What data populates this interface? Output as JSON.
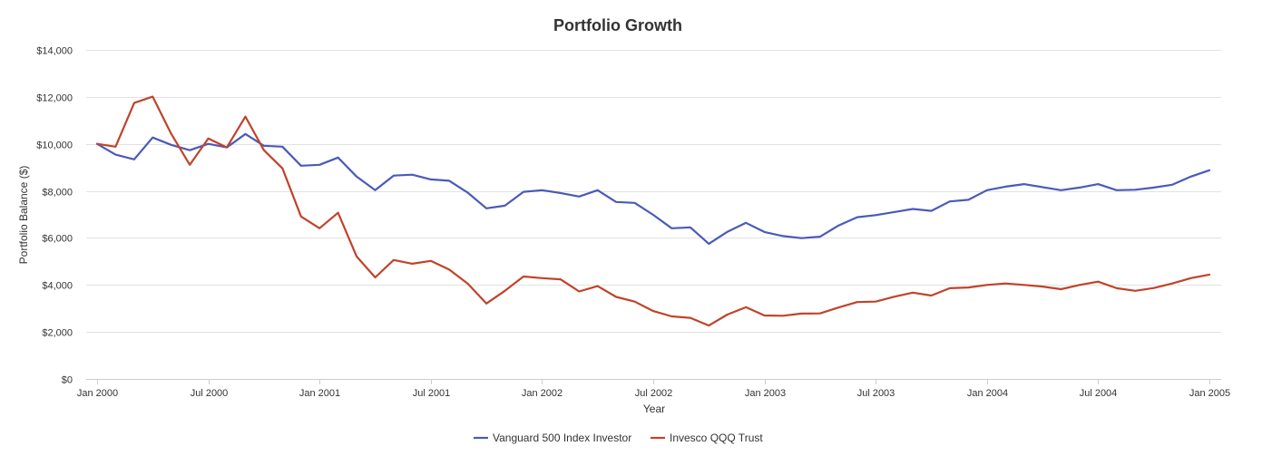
{
  "chart_data": {
    "type": "line",
    "title": "Portfolio Growth",
    "xlabel": "Year",
    "ylabel": "Portfolio Balance ($)",
    "ylim": [
      0,
      14000
    ],
    "yticks": [
      0,
      2000,
      4000,
      6000,
      8000,
      10000,
      12000,
      14000
    ],
    "ytick_labels": [
      "$0",
      "$2,000",
      "$4,000",
      "$6,000",
      "$8,000",
      "$10,000",
      "$12,000",
      "$14,000"
    ],
    "xtick_labels": [
      "Jan 2000",
      "Jul 2000",
      "Jan 2001",
      "Jul 2001",
      "Jan 2002",
      "Jul 2002",
      "Jan 2003",
      "Jul 2003",
      "Jan 2004",
      "Jul 2004",
      "Jan 2005"
    ],
    "xtick_month_index": [
      0,
      6,
      12,
      18,
      24,
      30,
      36,
      42,
      48,
      54,
      60
    ],
    "grid": true,
    "legend_position": "bottom-center",
    "x": [
      "2000-01",
      "2000-02",
      "2000-03",
      "2000-04",
      "2000-05",
      "2000-06",
      "2000-07",
      "2000-08",
      "2000-09",
      "2000-10",
      "2000-11",
      "2000-12",
      "2001-01",
      "2001-02",
      "2001-03",
      "2001-04",
      "2001-05",
      "2001-06",
      "2001-07",
      "2001-08",
      "2001-09",
      "2001-10",
      "2001-11",
      "2001-12",
      "2002-01",
      "2002-02",
      "2002-03",
      "2002-04",
      "2002-05",
      "2002-06",
      "2002-07",
      "2002-08",
      "2002-09",
      "2002-10",
      "2002-11",
      "2002-12",
      "2003-01",
      "2003-02",
      "2003-03",
      "2003-04",
      "2003-05",
      "2003-06",
      "2003-07",
      "2003-08",
      "2003-09",
      "2003-10",
      "2003-11",
      "2003-12",
      "2004-01",
      "2004-02",
      "2004-03",
      "2004-04",
      "2004-05",
      "2004-06",
      "2004-07",
      "2004-08",
      "2004-09",
      "2004-10",
      "2004-11",
      "2004-12",
      "2005-01"
    ],
    "series": [
      {
        "name": "Vanguard 500 Index Investor",
        "color": "#4a5ab8",
        "values": [
          10000,
          9540,
          9340,
          10270,
          9960,
          9730,
          10000,
          9850,
          10420,
          9920,
          9880,
          9070,
          9110,
          9420,
          8610,
          8030,
          8650,
          8690,
          8490,
          8430,
          7920,
          7260,
          7370,
          7960,
          8030,
          7910,
          7760,
          8030,
          7530,
          7490,
          6980,
          6410,
          6450,
          5750,
          6260,
          6640,
          6250,
          6080,
          5990,
          6050,
          6530,
          6880,
          6970,
          7100,
          7230,
          7150,
          7550,
          7620,
          8030,
          8180,
          8290,
          8160,
          8030,
          8140,
          8290,
          8030,
          8050,
          8140,
          8260,
          8610,
          8880
        ]
      },
      {
        "name": "Invesco QQQ Trust",
        "color": "#c0432b",
        "values": [
          10000,
          9880,
          11740,
          12010,
          10430,
          9110,
          10230,
          9850,
          11160,
          9730,
          8960,
          6910,
          6410,
          7070,
          5210,
          4320,
          5060,
          4900,
          5020,
          4650,
          4050,
          3210,
          3750,
          4360,
          4290,
          4240,
          3720,
          3950,
          3490,
          3290,
          2890,
          2660,
          2600,
          2270,
          2740,
          3050,
          2700,
          2690,
          2780,
          2790,
          3040,
          3270,
          3290,
          3500,
          3670,
          3550,
          3860,
          3890,
          4000,
          4060,
          4000,
          3930,
          3820,
          4000,
          4140,
          3860,
          3750,
          3870,
          4060,
          4290,
          4440
        ]
      }
    ]
  }
}
